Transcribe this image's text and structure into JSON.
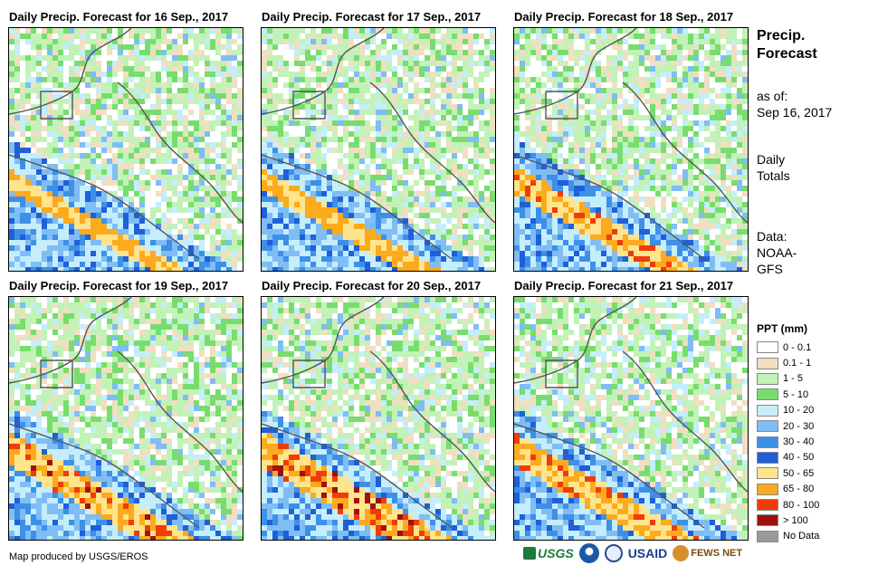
{
  "panels": [
    {
      "title": "Daily Precip. Forecast for 16 Sep., 2017",
      "seed": 11,
      "intensity": 0.25
    },
    {
      "title": "Daily Precip. Forecast for 17 Sep., 2017",
      "seed": 23,
      "intensity": 0.35
    },
    {
      "title": "Daily Precip. Forecast for 18 Sep., 2017",
      "seed": 37,
      "intensity": 0.55
    },
    {
      "title": "Daily Precip. Forecast for 19 Sep., 2017",
      "seed": 41,
      "intensity": 0.75
    },
    {
      "title": "Daily Precip. Forecast for 20 Sep., 2017",
      "seed": 53,
      "intensity": 0.9
    },
    {
      "title": "Daily Precip. Forecast for 21 Sep., 2017",
      "seed": 67,
      "intensity": 0.7
    }
  ],
  "side": {
    "title_line1": "Precip.",
    "title_line2": "Forecast",
    "asof_label": "as of:",
    "asof_date": "Sep 16, 2017",
    "totals_line1": "Daily",
    "totals_line2": "Totals",
    "data_line1": "Data:",
    "data_line2": "NOAA-",
    "data_line3": "GFS"
  },
  "legend": {
    "title": "PPT (mm)",
    "items": [
      {
        "label": "0 - 0.1",
        "color": "#ffffff"
      },
      {
        "label": "0.1 - 1",
        "color": "#f0dfc0"
      },
      {
        "label": "1 - 5",
        "color": "#c2f2b8"
      },
      {
        "label": "5 - 10",
        "color": "#78dd6e"
      },
      {
        "label": "10 - 20",
        "color": "#c4eefc"
      },
      {
        "label": "20 - 30",
        "color": "#7fbdf4"
      },
      {
        "label": "30 - 40",
        "color": "#3e8fe8"
      },
      {
        "label": "40 - 50",
        "color": "#1f5fd8"
      },
      {
        "label": "50 - 65",
        "color": "#ffe48c"
      },
      {
        "label": "65 - 80",
        "color": "#fdaa1e"
      },
      {
        "label": "80 - 100",
        "color": "#f03c0a"
      },
      {
        "label": "> 100",
        "color": "#a01010"
      },
      {
        "label": "No Data",
        "color": "#9a9a9a"
      }
    ]
  },
  "credit": "Map produced by USGS/EROS",
  "logos": {
    "usgs": "USGS",
    "usaid": "USAID",
    "fews": "FEWS NET"
  }
}
